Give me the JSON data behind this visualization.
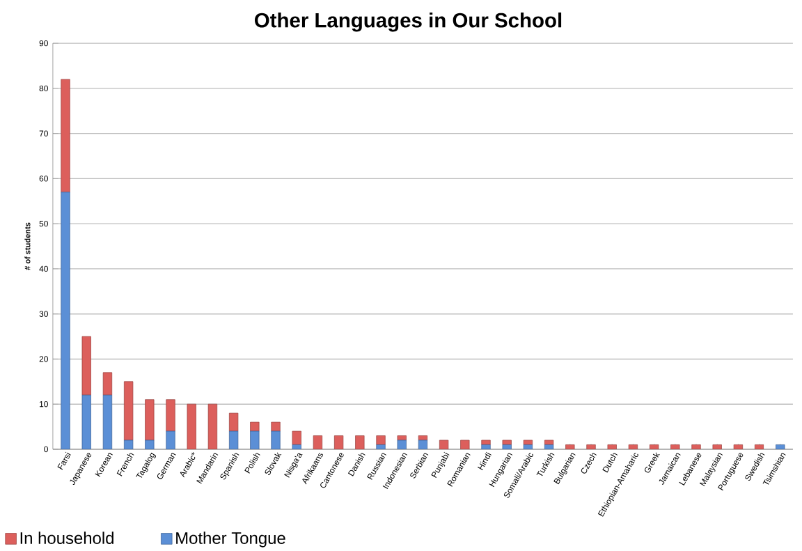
{
  "chart_data": {
    "type": "bar",
    "stacked": true,
    "title": "Other Languages in Our School",
    "ylabel": "# of students",
    "categories": [
      "Farsi",
      "Japanese",
      "Korean",
      "French",
      "Tagalog",
      "German",
      "Arabic*",
      "Mandarin",
      "Spanish",
      "Polish",
      "Slovak",
      "Nisga'a",
      "Afrikaans",
      "Cantonese",
      "Danish",
      "Russian",
      "Indonesian",
      "Serbian",
      "Punjabi",
      "Romanian",
      "Hindi",
      "Hungarian",
      "Somali/Arabic",
      "Turkish",
      "Bulgarian",
      "Czech",
      "Dutch",
      "Ethiopian-Amaharic",
      "Greek",
      "Jamaican",
      "Lebanese",
      "Malaysian",
      "Portuguese",
      "Swedish",
      "Tsimshian"
    ],
    "series": [
      {
        "name": "Mother Tongue",
        "color": "#5b8fd6",
        "values": [
          57,
          12,
          12,
          2,
          2,
          4,
          0,
          0,
          4,
          4,
          4,
          1,
          0,
          0,
          0,
          1,
          2,
          2,
          0,
          0,
          1,
          1,
          1,
          1,
          0,
          0,
          0,
          0,
          0,
          0,
          0,
          0,
          0,
          0,
          1
        ]
      },
      {
        "name": "In household",
        "color": "#dc5f5c",
        "values": [
          25,
          13,
          5,
          13,
          9,
          7,
          10,
          10,
          4,
          2,
          2,
          3,
          3,
          3,
          3,
          2,
          1,
          1,
          2,
          2,
          1,
          1,
          1,
          1,
          1,
          1,
          1,
          1,
          1,
          1,
          1,
          1,
          1,
          1,
          0
        ]
      }
    ],
    "ylim": [
      0,
      90
    ],
    "yticks": [
      0,
      10,
      20,
      30,
      40,
      50,
      60,
      70,
      80,
      90
    ],
    "grid": "y",
    "legend": "bottom left"
  }
}
